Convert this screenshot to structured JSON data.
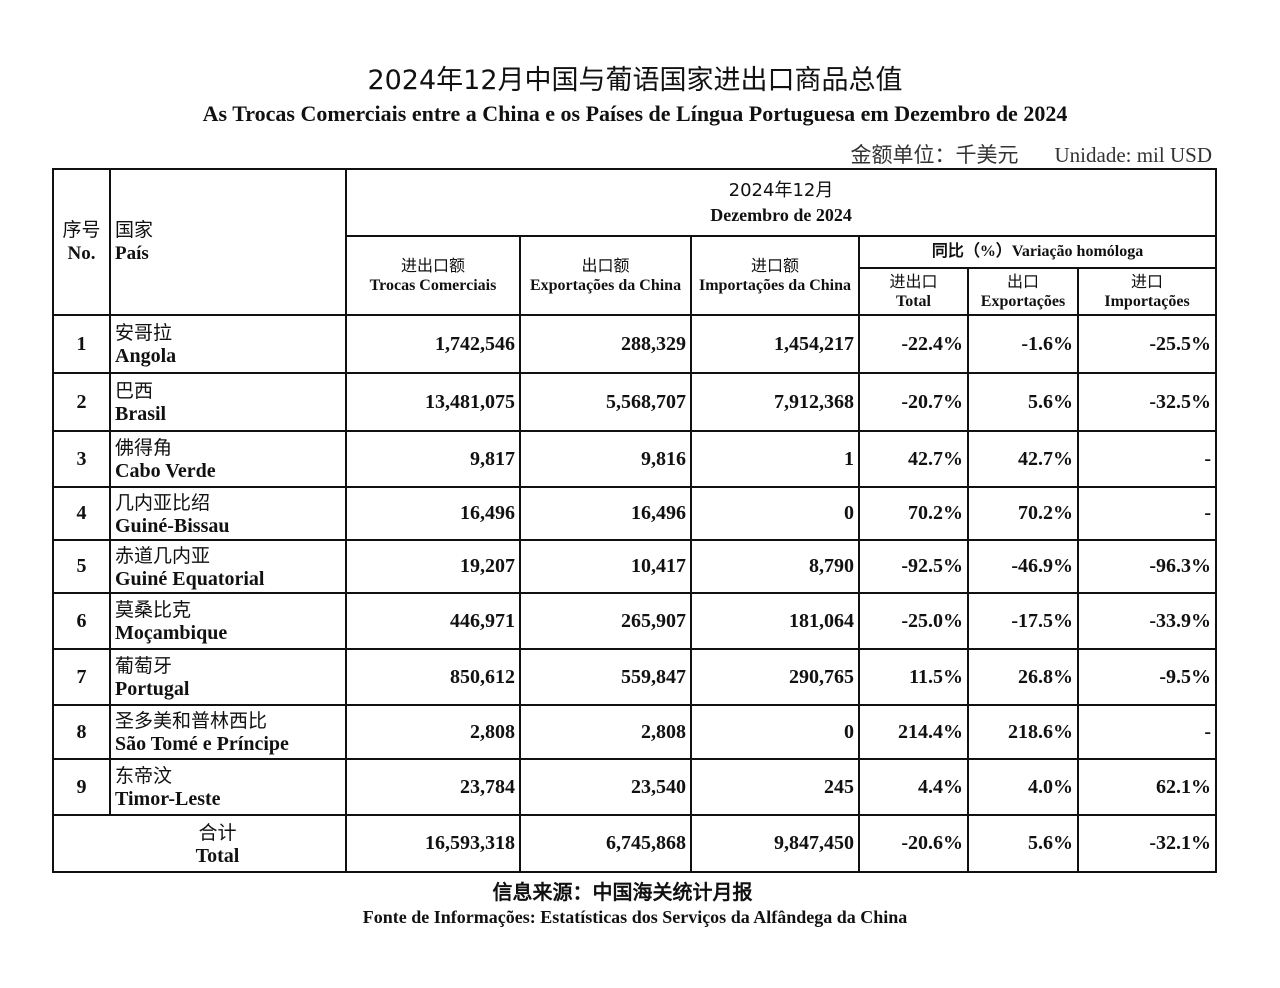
{
  "title_cn": "2024年12月中国与葡语国家进出口商品总值",
  "title_pt": "As Trocas Comerciais entre a China e os Países de Língua Portuguesa em Dezembro de 2024",
  "unit_cn": "金额单位：千美元",
  "unit_pt": "Unidade:  mil USD",
  "header": {
    "no_cn": "序号",
    "no_pt": "No.",
    "country_cn": "国家",
    "country_pt": "País",
    "period_cn": "2024年12月",
    "period_pt": "Dezembro de 2024",
    "trade_cn": "进出口额",
    "trade_pt": "Trocas Comerciais",
    "exp_cn": "出口额",
    "exp_pt": "Exportações da China",
    "imp_cn": "进口额",
    "imp_pt": "Importações da China",
    "yoy": "同比（%）Variação homóloga",
    "yoy_total_cn": "进出口",
    "yoy_total_pt": "Total",
    "yoy_exp_cn": "出口",
    "yoy_exp_pt": "Exportações",
    "yoy_imp_cn": "进口",
    "yoy_imp_pt": "Importações"
  },
  "rows": [
    {
      "no": "1",
      "cn": "安哥拉",
      "pt": "Angola",
      "trade": "1,742,546",
      "exp": "288,329",
      "imp": "1,454,217",
      "yt": "-22.4%",
      "ye": "-1.6%",
      "yi": "-25.5%"
    },
    {
      "no": "2",
      "cn": "巴西",
      "pt": "Brasil",
      "trade": "13,481,075",
      "exp": "5,568,707",
      "imp": "7,912,368",
      "yt": "-20.7%",
      "ye": "5.6%",
      "yi": "-32.5%"
    },
    {
      "no": "3",
      "cn": "佛得角",
      "pt": "Cabo Verde",
      "trade": "9,817",
      "exp": "9,816",
      "imp": "1",
      "yt": "42.7%",
      "ye": "42.7%",
      "yi": "-"
    },
    {
      "no": "4",
      "cn": "几内亚比绍",
      "pt": "Guiné-Bissau",
      "trade": "16,496",
      "exp": "16,496",
      "imp": "0",
      "yt": "70.2%",
      "ye": "70.2%",
      "yi": "-"
    },
    {
      "no": "5",
      "cn": "赤道几内亚",
      "pt": "Guiné Equatorial",
      "trade": "19,207",
      "exp": "10,417",
      "imp": "8,790",
      "yt": "-92.5%",
      "ye": "-46.9%",
      "yi": "-96.3%"
    },
    {
      "no": "6",
      "cn": "莫桑比克",
      "pt": "Moçambique",
      "trade": "446,971",
      "exp": "265,907",
      "imp": "181,064",
      "yt": "-25.0%",
      "ye": "-17.5%",
      "yi": "-33.9%"
    },
    {
      "no": "7",
      "cn": "葡萄牙",
      "pt": "Portugal",
      "trade": "850,612",
      "exp": "559,847",
      "imp": "290,765",
      "yt": "11.5%",
      "ye": "26.8%",
      "yi": "-9.5%"
    },
    {
      "no": "8",
      "cn": "圣多美和普林西比",
      "pt": "São Tomé e Príncipe",
      "trade": "2,808",
      "exp": "2,808",
      "imp": "0",
      "yt": "214.4%",
      "ye": "218.6%",
      "yi": "-"
    },
    {
      "no": "9",
      "cn": "东帝汶",
      "pt": "Timor-Leste",
      "trade": "23,784",
      "exp": "23,540",
      "imp": "245",
      "yt": "4.4%",
      "ye": "4.0%",
      "yi": "62.1%"
    }
  ],
  "total": {
    "cn": "合计",
    "pt": "Total",
    "trade": "16,593,318",
    "exp": "6,745,868",
    "imp": "9,847,450",
    "yt": "-20.6%",
    "ye": "5.6%",
    "yi": "-32.1%"
  },
  "source_cn": "信息来源：中国海关统计月报",
  "source_pt": "Fonte de Informações: Estatísticas dos Serviços da Alfândega da China"
}
